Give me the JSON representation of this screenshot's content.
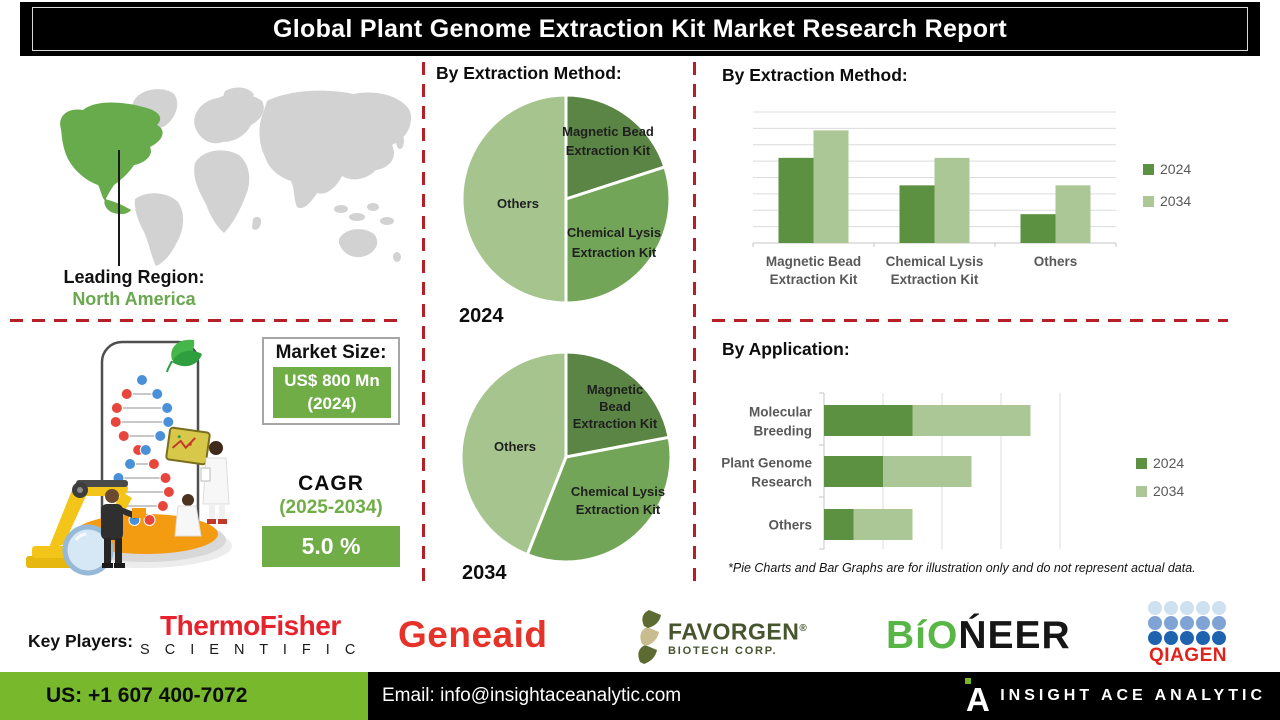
{
  "header": {
    "title": "Global Plant Genome Extraction Kit Market Research Report"
  },
  "leading_region": {
    "label": "Leading Region:",
    "value": "North America"
  },
  "market_size": {
    "label": "Market Size:",
    "value": "US$ 800 Mn",
    "year": "(2024)"
  },
  "cagr": {
    "label": "CAGR",
    "period": "(2025-2034)",
    "value": "5.0 %"
  },
  "footnote": "*Pie Charts and Bar Graphs are for illustration only and do not represent actual data.",
  "chart_data": [
    {
      "id": "pie_extraction_2024",
      "type": "pie",
      "title": "By Extraction Method:",
      "year_label": "2024",
      "slices": [
        {
          "label": "Magnetic Bead Extraction Kit",
          "label_lines": [
            "Magnetic Bead",
            "Extraction Kit"
          ],
          "value": 20,
          "color": "#5a8544"
        },
        {
          "label": "Chemical Lysis Extraction Kit",
          "label_lines": [
            "Chemical Lysis",
            "Extraction Kit"
          ],
          "value": 30,
          "color": "#73a558"
        },
        {
          "label": "Others",
          "label_lines": [
            "Others"
          ],
          "value": 50,
          "color": "#a6c58e"
        }
      ]
    },
    {
      "id": "pie_extraction_2034",
      "type": "pie",
      "title": "By Extraction Method:",
      "year_label": "2034",
      "slices": [
        {
          "label": "Magnetic Bead Extraction Kit",
          "label_lines": [
            "Magnetic",
            "Bead",
            "Extraction Kit"
          ],
          "value": 22,
          "color": "#5a8544"
        },
        {
          "label": "Chemical Lysis Extraction Kit",
          "label_lines": [
            "Chemical Lysis",
            "Extraction Kit"
          ],
          "value": 34,
          "color": "#73a558"
        },
        {
          "label": "Others",
          "label_lines": [
            "Others"
          ],
          "value": 44,
          "color": "#a6c58e"
        }
      ]
    },
    {
      "id": "bar_extraction_method",
      "type": "bar",
      "title": "By Extraction Method:",
      "categories": [
        "Magnetic Bead Extraction Kit",
        "Chemical Lysis Extraction Kit",
        "Others"
      ],
      "category_lines": [
        [
          "Magnetic Bead",
          "Extraction Kit"
        ],
        [
          "Chemical Lysis",
          "Extraction Kit"
        ],
        [
          "Others"
        ]
      ],
      "series": [
        {
          "name": "2024",
          "color": "#5b9140",
          "values": [
            65,
            44,
            22
          ]
        },
        {
          "name": "2034",
          "color": "#abc795",
          "values": [
            86,
            65,
            44
          ]
        }
      ],
      "ylim": [
        0,
        100
      ],
      "grid": true,
      "legend_position": "right"
    },
    {
      "id": "bar_application",
      "type": "stacked-bar-horizontal",
      "title": "By Application:",
      "categories": [
        "Molecular Breeding",
        "Plant Genome Research",
        "Others"
      ],
      "category_lines": [
        [
          "Molecular",
          "Breeding"
        ],
        [
          "Plant Genome",
          "Research"
        ],
        [
          "Others"
        ]
      ],
      "series": [
        {
          "name": "2024",
          "color": "#5b9140",
          "values": [
            37.5,
            25,
            12.5
          ]
        },
        {
          "name": "2034",
          "color": "#abc795",
          "values": [
            50,
            37.5,
            25
          ]
        }
      ],
      "xlim": [
        0,
        100
      ],
      "grid": true,
      "legend_position": "right"
    }
  ],
  "key_players": {
    "label": "Key Players:",
    "thermo": {
      "name": "Thermo Fisher Scientific",
      "line1": "ThermoFisher",
      "line2": "S C I E N T I F I C",
      "color": "#e8222d"
    },
    "geneaid": {
      "name": "Geneaid",
      "text": "Geneaid",
      "color": "#e63329"
    },
    "favorgen": {
      "name": "Favorgen Biotech Corp",
      "line1": "FAVORGEN",
      "reg_mark": "®",
      "line2": "BIOTECH CORP.",
      "color": "#47552e"
    },
    "bioneer": {
      "name": "Bioneer",
      "green_part": "BíO",
      "black_part": "ŃEER",
      "green": "#58b647",
      "black": "#161616"
    },
    "qiagen": {
      "name": "Qiagen",
      "text": "QIAGEN",
      "color": "#e2231a",
      "dot_rows": [
        "#cfe0f1",
        "#7fa3d4",
        "#1f63ae"
      ]
    }
  },
  "footer": {
    "phone": "US: +1 607 400-7072",
    "email": "Email: info@insightaceanalytic.com",
    "brand": "INSIGHT ACE ANALYTIC"
  },
  "colors": {
    "accent_green": "#70ad47",
    "dashed_red": "#b42025",
    "footer_green": "#77b82c",
    "map_base": "#d2d2d2",
    "map_highlight": "#67ab4d",
    "leading_region_green": "#6aa84f"
  }
}
